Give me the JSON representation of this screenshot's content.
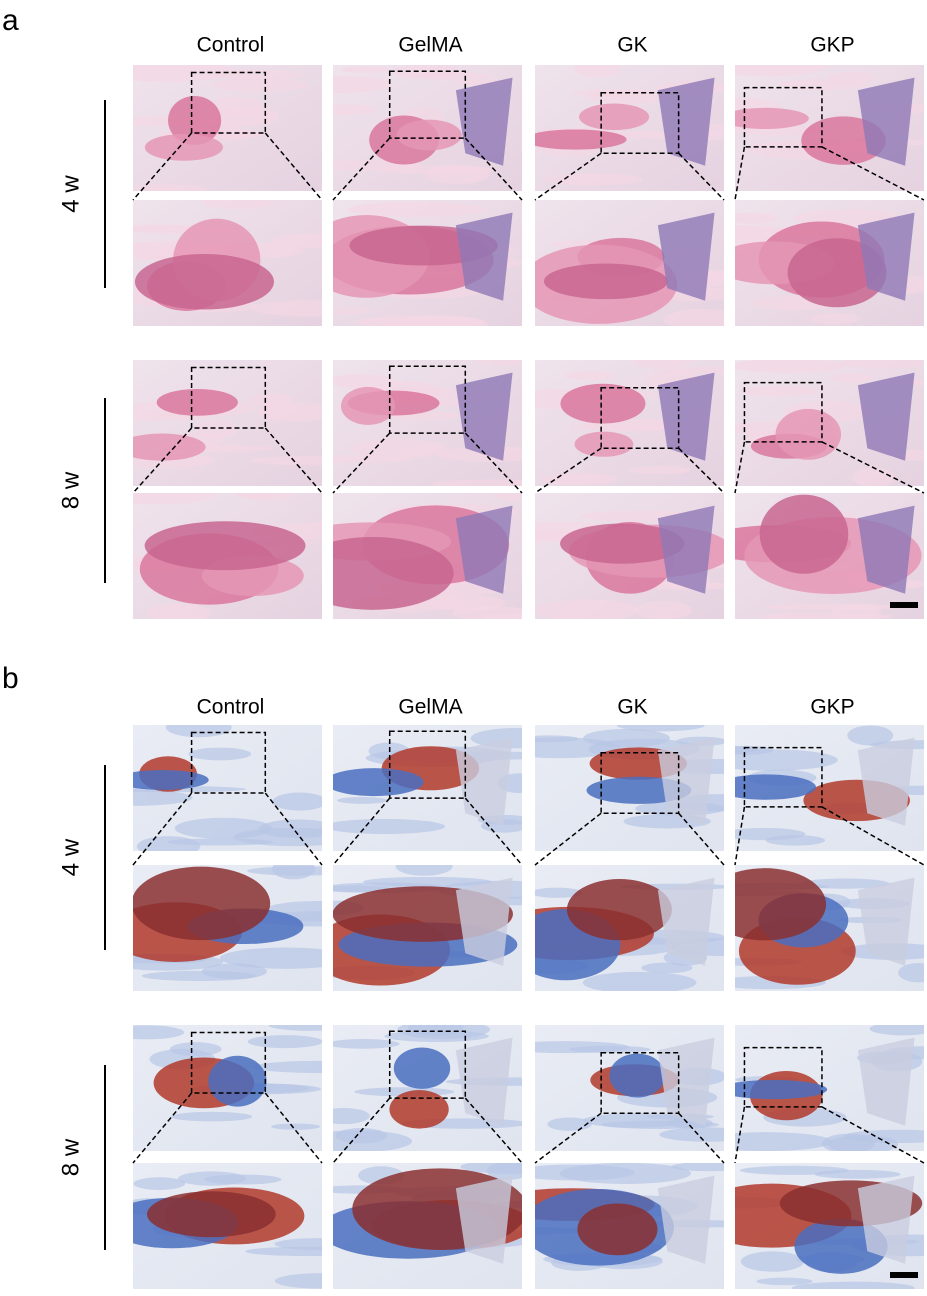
{
  "panels": [
    {
      "label": "a",
      "columns": [
        "Control",
        "GelMA",
        "GK",
        "GKP"
      ],
      "rows": [
        {
          "label": "4 w"
        },
        {
          "label": "8 w"
        }
      ]
    },
    {
      "label": "b",
      "columns": [
        "Control",
        "GelMA",
        "GK",
        "GKP"
      ],
      "rows": [
        {
          "label": "4 w"
        },
        {
          "label": "8 w"
        }
      ]
    }
  ]
}
